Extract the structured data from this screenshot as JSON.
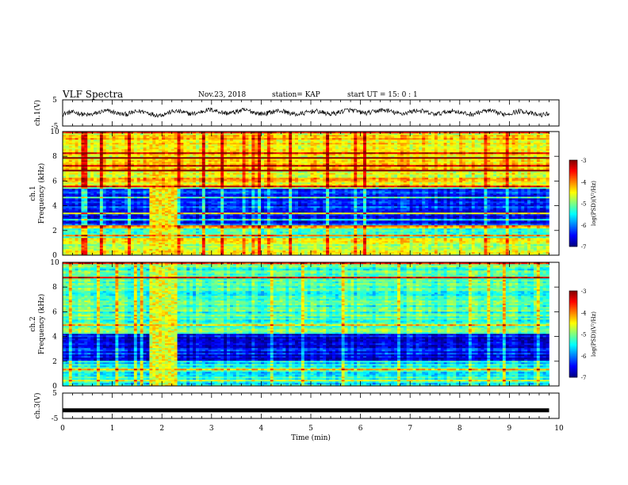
{
  "header": {
    "title": "VLF Spectra",
    "date": "Nov.23, 2018",
    "station": "station= KAP",
    "start": "start  UT =  15: 0  : 1"
  },
  "chart_data": [
    {
      "type": "line",
      "panel": "ch1-waveform",
      "ylabel": "ch.1(V)",
      "ylim": [
        -5,
        5
      ],
      "yticks": [
        "5",
        "-5"
      ],
      "xlim": [
        0,
        10
      ],
      "description": "noisy waveform oscillating roughly between -2 and 2 V",
      "x_min": [
        0,
        1,
        2,
        3,
        4,
        5,
        6,
        7,
        8,
        9,
        9.8
      ],
      "y_approx": [
        -0.5,
        0.2,
        -0.2,
        0.6,
        0.3,
        0.0,
        0.6,
        0.3,
        0.1,
        0.2,
        -0.3
      ]
    },
    {
      "type": "heatmap",
      "panel": "ch1-spectrogram",
      "ylabel": "ch.1\nFrequency (kHz)",
      "ylim": [
        0,
        10
      ],
      "yticks": [
        "0",
        "2",
        "4",
        "6",
        "8",
        "10"
      ],
      "xlim": [
        0,
        10
      ],
      "colorbar": {
        "label": "log(PSD)(V²/Hz)",
        "range": [
          -7,
          -3
        ],
        "ticks": [
          "-3",
          "-4",
          "-5",
          "-6",
          "-7"
        ]
      },
      "bands": [
        {
          "f": [
            0,
            1.4
          ],
          "level": -4.6
        },
        {
          "f": [
            1.4,
            2.4
          ],
          "level": -5.3
        },
        {
          "f": [
            2.4,
            5.5
          ],
          "level": -6.3
        },
        {
          "f": [
            5.5,
            10
          ],
          "level": -4.4
        }
      ],
      "burst": {
        "t": [
          1.75,
          2.3
        ],
        "level": -4.5
      }
    },
    {
      "type": "heatmap",
      "panel": "ch2-spectrogram",
      "ylabel": "ch.2\nFrequency (kHz)",
      "ylim": [
        0,
        10
      ],
      "yticks": [
        "0",
        "2",
        "4",
        "6",
        "8",
        "10"
      ],
      "xlim": [
        0,
        10
      ],
      "colorbar": {
        "label": "log(PSD)(V²/Hz)",
        "range": [
          -7,
          -3
        ],
        "ticks": [
          "-3",
          "-4",
          "-5",
          "-6",
          "-7"
        ]
      },
      "bands": [
        {
          "f": [
            0,
            2.0
          ],
          "level": -5.5
        },
        {
          "f": [
            2.0,
            4.2
          ],
          "level": -6.5
        },
        {
          "f": [
            4.2,
            10
          ],
          "level": -5.2
        }
      ],
      "burst": {
        "t": [
          1.75,
          2.3
        ],
        "level": -4.6
      }
    },
    {
      "type": "line",
      "panel": "ch3-waveform",
      "ylabel": "ch.3(V)",
      "ylim": [
        -5,
        5
      ],
      "yticks": [
        "5",
        "-5"
      ],
      "xlim": [
        0,
        10
      ],
      "xlabel": "Time  (min)",
      "xticks": [
        "0",
        "1",
        "2",
        "3",
        "4",
        "5",
        "6",
        "7",
        "8",
        "9",
        "10"
      ],
      "x": [
        0,
        9.8
      ],
      "y": [
        -1.8,
        -1.8
      ]
    }
  ]
}
